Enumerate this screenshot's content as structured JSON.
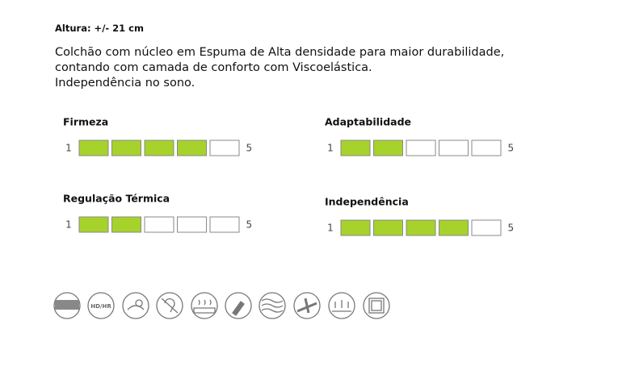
{
  "header": {
    "title": "Altura: +/- 21 cm"
  },
  "description": [
    "Colchão com núcleo em Espuma de Alta densidade para maior durabilidade,",
    "contando com camada de conforto com Viscoelástica.",
    "Independência no sono."
  ],
  "ratings": [
    {
      "label": "Firmeza",
      "min": "1",
      "max": "5",
      "value": 4
    },
    {
      "label": "Adaptabilidade",
      "min": "1",
      "max": "5",
      "value": 2
    },
    {
      "label": "Regulação Térmica",
      "min": "1",
      "max": "5",
      "value": 2
    },
    {
      "label": "Independência",
      "min": "1",
      "max": "5",
      "value": 4
    }
  ],
  "icons": {
    "hdhr": "HD/HR"
  }
}
